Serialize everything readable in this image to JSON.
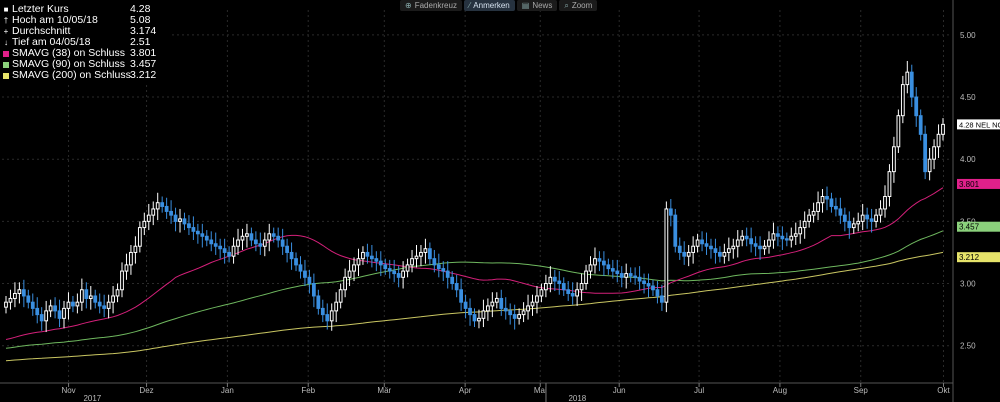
{
  "toolbar": {
    "items": [
      {
        "label": "Fadenkreuz",
        "icon": "crosshair-icon"
      },
      {
        "label": "Anmerken",
        "icon": "pencil-icon"
      },
      {
        "label": "News",
        "icon": "news-icon"
      },
      {
        "label": "Zoom",
        "icon": "zoom-icon"
      }
    ]
  },
  "legend": {
    "rows": [
      {
        "symbol": "■",
        "label": "Letzter Kurs",
        "value": "4.28",
        "color": "#ffffff"
      },
      {
        "symbol": "†",
        "label": "Hoch am 10/05/18",
        "value": "5.08",
        "color": "#ffffff"
      },
      {
        "symbol": "+",
        "label": "Durchschnitt",
        "value": "3.174",
        "color": "#ffffff"
      },
      {
        "symbol": "↓",
        "label": "Tief am 04/05/18",
        "value": "2.51",
        "color": "#ffffff"
      },
      {
        "symbol": "",
        "label": "SMAVG (38)  on Schluss",
        "value": "3.801",
        "color": "#e0208a"
      },
      {
        "symbol": "",
        "label": "SMAVG (90)  on Schluss",
        "value": "3.457",
        "color": "#8bd17c"
      },
      {
        "symbol": "",
        "label": "SMAVG (200)  on Schluss",
        "value": "3.212",
        "color": "#e6e36a"
      }
    ]
  },
  "chart_data": {
    "type": "candlestick",
    "ylim": [
      2.2,
      5.2
    ],
    "yticks": [
      "5.00",
      "4.50",
      "4.00",
      "3.50",
      "3.00",
      "2.50"
    ],
    "months": [
      "Nov",
      "Dez",
      "Jan",
      "Feb",
      "Mär",
      "Apr",
      "Mai",
      "Jun",
      "Jul",
      "Aug",
      "Sep",
      "Okt"
    ],
    "years": [
      "2017",
      "2018"
    ],
    "last_label": "4.28 NEL NO",
    "colors": {
      "up": "#ffffff",
      "down": "#3a8fe0",
      "sma38": "#d4207a",
      "sma90": "#6fb85f",
      "sma200": "#c9c662",
      "grid": "#2a2a2a"
    },
    "sma_labels": [
      {
        "value": 3.801,
        "text": "3.801",
        "color": "#e0208a"
      },
      {
        "value": 3.457,
        "text": "3.457",
        "color": "#8bd17c"
      },
      {
        "value": 3.212,
        "text": "3.212",
        "color": "#e6e36a"
      }
    ],
    "close": [
      2.85,
      2.88,
      2.92,
      2.95,
      2.9,
      2.85,
      2.8,
      2.75,
      2.7,
      2.78,
      2.82,
      2.78,
      2.72,
      2.8,
      2.85,
      2.82,
      2.85,
      2.95,
      2.88,
      2.9,
      2.85,
      2.82,
      2.8,
      2.85,
      2.9,
      2.95,
      3.1,
      3.15,
      3.25,
      3.3,
      3.45,
      3.5,
      3.55,
      3.6,
      3.65,
      3.62,
      3.58,
      3.55,
      3.5,
      3.52,
      3.48,
      3.45,
      3.42,
      3.4,
      3.38,
      3.35,
      3.32,
      3.3,
      3.28,
      3.25,
      3.22,
      3.3,
      3.35,
      3.38,
      3.4,
      3.35,
      3.32,
      3.3,
      3.35,
      3.4,
      3.38,
      3.35,
      3.3,
      3.25,
      3.2,
      3.15,
      3.1,
      3.05,
      3.0,
      2.9,
      2.8,
      2.75,
      2.7,
      2.78,
      2.85,
      2.95,
      3.05,
      3.1,
      3.15,
      3.2,
      3.25,
      3.22,
      3.2,
      3.18,
      3.15,
      3.12,
      3.1,
      3.08,
      3.05,
      3.1,
      3.15,
      3.2,
      3.22,
      3.25,
      3.28,
      3.2,
      3.15,
      3.12,
      3.1,
      3.05,
      3.0,
      2.95,
      2.85,
      2.8,
      2.75,
      2.7,
      2.72,
      2.78,
      2.82,
      2.85,
      2.88,
      2.8,
      2.78,
      2.75,
      2.72,
      2.75,
      2.78,
      2.82,
      2.85,
      2.9,
      2.95,
      3.0,
      3.05,
      3.02,
      3.0,
      2.95,
      2.92,
      2.9,
      2.95,
      3.0,
      3.1,
      3.15,
      3.2,
      3.18,
      3.15,
      3.12,
      3.1,
      3.08,
      3.05,
      3.08,
      3.06,
      3.05,
      3.02,
      3.0,
      2.98,
      2.95,
      2.9,
      2.85,
      3.6,
      3.55,
      3.3,
      3.25,
      3.22,
      3.25,
      3.3,
      3.35,
      3.32,
      3.3,
      3.28,
      3.25,
      3.22,
      3.25,
      3.28,
      3.3,
      3.35,
      3.38,
      3.36,
      3.32,
      3.3,
      3.28,
      3.3,
      3.35,
      3.4,
      3.38,
      3.36,
      3.35,
      3.38,
      3.4,
      3.45,
      3.5,
      3.55,
      3.58,
      3.65,
      3.7,
      3.68,
      3.62,
      3.6,
      3.55,
      3.5,
      3.45,
      3.48,
      3.5,
      3.55,
      3.52,
      3.5,
      3.55,
      3.6,
      3.7,
      3.9,
      4.1,
      4.35,
      4.6,
      4.7,
      4.5,
      4.35,
      4.2,
      3.9,
      4.0,
      4.1,
      4.2,
      4.28
    ]
  }
}
